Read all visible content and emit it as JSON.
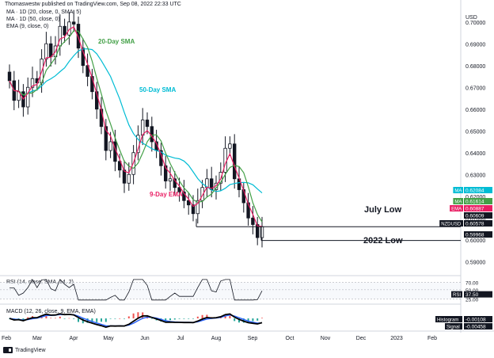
{
  "header": {
    "published_by": "Thomaswestw published on TradingView.com, Sep 08, 2022 22:33 UTC"
  },
  "indicators": [
    "MA · 1D (20, close, 0, SMA, 5)",
    "MA · 1D (50, close, 0)",
    "EMA (9, close, 0)"
  ],
  "currency": "USD",
  "annotations": {
    "sma20": "20-Day SMA",
    "sma50": "50-Day SMA",
    "ema9": "9-Day EMA",
    "july_low": "July Low",
    "low_2022": "2022 Low"
  },
  "colors": {
    "sma20": "#43a047",
    "sma50": "#00bcd4",
    "ema9": "#e91e63",
    "up": "#131722",
    "down": "#131722",
    "level": "#131722",
    "rsi": "#131722",
    "macd": "#000000",
    "signal": "#2962ff",
    "hist_pos": "#ef5350",
    "hist_neg": "#26a69a"
  },
  "price_badges": [
    {
      "label": "MA",
      "value": "0.62084",
      "color": "#00bcd4"
    },
    {
      "label": "MA",
      "value": "0.61614",
      "color": "#43a047"
    },
    {
      "label": "EMA",
      "value": "0.60887",
      "color": "#e91e63"
    },
    {
      "label": "",
      "value": "0.60609",
      "color": "#131722"
    },
    {
      "label": "NZDUSD",
      "value": "0.60578",
      "color": "#131722"
    },
    {
      "label": "",
      "value": "0.59968",
      "color": "#131722"
    }
  ],
  "rsi_panel": {
    "label": "RSI (14, close, SMA, 14, 2)",
    "levels": [
      "70.00",
      "50.00",
      "25.00"
    ],
    "badge_label": "RSI",
    "badge_value": "37.50"
  },
  "macd_panel": {
    "label": "MACD (12, 26, close, 9, EMA, EMA)",
    "histogram_label": "Histogram",
    "histogram_value": "-0.00108",
    "signal_label": "Signal",
    "signal_value": "-0.00458"
  },
  "footer": {
    "brand": "TradingView"
  },
  "chart_data": {
    "type": "candlestick",
    "symbol": "NZDUSD",
    "ylim": [
      0.585,
      0.705
    ],
    "y_ticks": [
      "0.70000",
      "0.69000",
      "0.68000",
      "0.67000",
      "0.66000",
      "0.65000",
      "0.64000",
      "0.63000",
      "0.62000",
      "0.61000",
      "0.60000",
      "0.59000"
    ],
    "x_ticks": [
      "Feb",
      "Mar",
      "Apr",
      "May",
      "Jun",
      "Jul",
      "Aug",
      "Sep",
      "Oct",
      "Nov",
      "Dec",
      "2023",
      "Feb"
    ],
    "close_path": [
      0.673,
      0.664,
      0.668,
      0.661,
      0.67,
      0.674,
      0.672,
      0.683,
      0.69,
      0.684,
      0.689,
      0.698,
      0.694,
      0.7,
      0.699,
      0.688,
      0.68,
      0.675,
      0.668,
      0.66,
      0.652,
      0.641,
      0.645,
      0.636,
      0.632,
      0.626,
      0.63,
      0.64,
      0.648,
      0.655,
      0.652,
      0.645,
      0.641,
      0.634,
      0.627,
      0.628,
      0.624,
      0.622,
      0.618,
      0.616,
      0.612,
      0.618,
      0.624,
      0.628,
      0.623,
      0.626,
      0.631,
      0.642,
      0.644,
      0.628,
      0.623,
      0.617,
      0.61,
      0.607,
      0.601,
      0.606
    ],
    "levels": [
      {
        "name": "July Low",
        "value": 0.606
      },
      {
        "name": "2022 Low",
        "value": 0.5997
      }
    ],
    "rsi_last": 37.5,
    "macd_histogram_last": -0.00108,
    "macd_signal_last": -0.00458
  }
}
